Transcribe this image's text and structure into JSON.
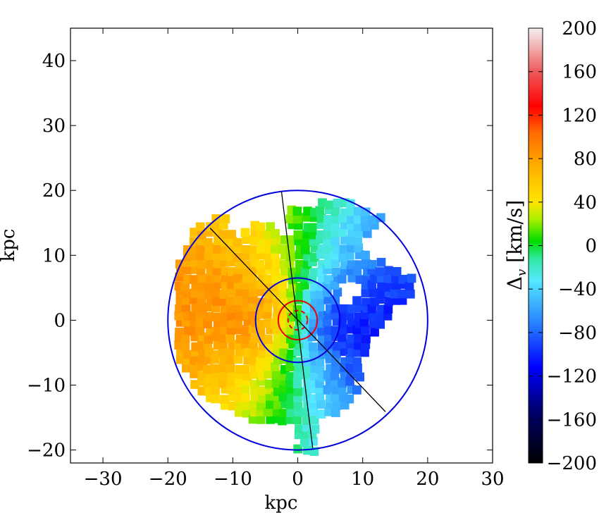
{
  "chart_data": {
    "type": "heatmap",
    "xlabel": "kpc",
    "ylabel": "kpc",
    "xlim": [
      -35,
      30
    ],
    "ylim": [
      -22,
      45
    ],
    "xticks": [
      -30,
      -20,
      -10,
      0,
      10,
      20,
      30
    ],
    "yticks": [
      -20,
      -10,
      0,
      10,
      20,
      30,
      40
    ],
    "xtick_labels": [
      "−30",
      "−20",
      "−10",
      "0",
      "10",
      "20",
      "30"
    ],
    "ytick_labels": [
      "−20",
      "−10",
      "0",
      "10",
      "20",
      "30",
      "40"
    ],
    "colorbar": {
      "label": "Δ_v [km/s]",
      "label_main": "Δ",
      "label_sub": "v",
      "label_unit": " [km/s]",
      "range": [
        -200,
        200
      ],
      "ticks": [
        200,
        160,
        120,
        80,
        40,
        0,
        -40,
        -80,
        -120,
        -160,
        -200
      ],
      "tick_labels": [
        "200",
        "160",
        "120",
        "80",
        "40",
        "0",
        "−40",
        "−80",
        "−120",
        "−160",
        "−200"
      ],
      "colormap": "jet-like"
    },
    "circles": [
      {
        "center": [
          0,
          0
        ],
        "radius": 20,
        "color": "#0000dd",
        "style": "solid"
      },
      {
        "center": [
          0,
          0
        ],
        "radius": 6.5,
        "color": "#0000dd",
        "style": "solid"
      },
      {
        "center": [
          0,
          0
        ],
        "radius": 3,
        "color": "#ee0000",
        "style": "solid"
      },
      {
        "center": [
          0,
          0
        ],
        "radius": 1.5,
        "color": "#ee0000",
        "style": "dashed"
      }
    ],
    "lines": [
      {
        "from": [
          -2.5,
          19.8
        ],
        "to": [
          2.3,
          -19.7
        ],
        "color": "#000000"
      },
      {
        "from": [
          -13.5,
          14.2
        ],
        "to": [
          13.5,
          -14.1
        ],
        "color": "#000000"
      }
    ],
    "velocity_field": {
      "description": "Voronoi-binned velocity offset map of a disk",
      "approximate_rotation_axis_angle_deg": -7,
      "max_abs_value_kms": 85,
      "hole_center": [
        8,
        4.5
      ],
      "hole_radius": 1.8
    }
  }
}
